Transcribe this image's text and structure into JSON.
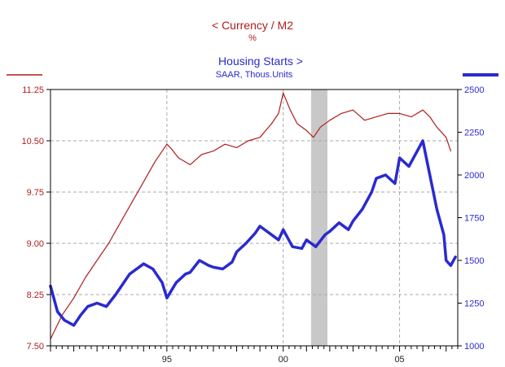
{
  "chart_data": {
    "type": "line",
    "left_title": "<  Currency / M2",
    "left_unit": "%",
    "right_title": "Housing Starts  >",
    "right_unit": "SAAR, Thous.Units",
    "x_ticks": [
      {
        "label": "95",
        "year": 1995
      },
      {
        "label": "00",
        "year": 2000
      },
      {
        "label": "05",
        "year": 2005
      }
    ],
    "x_range": [
      1990.0,
      2007.5
    ],
    "left_axis": {
      "ylim": [
        7.5,
        11.25
      ],
      "ticks": [
        "7.50",
        "8.25",
        "9.00",
        "9.75",
        "10.50",
        "11.25"
      ],
      "color": "#b01c1c"
    },
    "right_axis": {
      "ylim": [
        1000,
        2500
      ],
      "ticks": [
        "1000",
        "1250",
        "1500",
        "1750",
        "2000",
        "2250",
        "2500"
      ],
      "color": "#2a2ad0"
    },
    "recession": [
      2001.2,
      2001.9
    ],
    "grid": true,
    "series": [
      {
        "name": "Currency / M2",
        "axis": "left",
        "color": "#b01c1c",
        "x": [
          1990.0,
          1990.5,
          1991.0,
          1991.5,
          1992.0,
          1992.5,
          1993.0,
          1993.5,
          1994.0,
          1994.5,
          1995.0,
          1995.2,
          1995.5,
          1996.0,
          1996.5,
          1997.0,
          1997.5,
          1998.0,
          1998.5,
          1999.0,
          1999.5,
          1999.8,
          2000.0,
          2000.3,
          2000.6,
          2001.0,
          2001.3,
          2001.6,
          2002.0,
          2002.5,
          2003.0,
          2003.5,
          2004.0,
          2004.5,
          2005.0,
          2005.5,
          2006.0,
          2006.3,
          2006.6,
          2007.0,
          2007.2
        ],
        "values": [
          7.6,
          7.95,
          8.2,
          8.5,
          8.75,
          9.0,
          9.3,
          9.6,
          9.9,
          10.2,
          10.45,
          10.38,
          10.25,
          10.15,
          10.3,
          10.35,
          10.45,
          10.4,
          10.5,
          10.55,
          10.75,
          10.9,
          11.2,
          10.95,
          10.75,
          10.65,
          10.55,
          10.7,
          10.8,
          10.9,
          10.95,
          10.8,
          10.85,
          10.9,
          10.9,
          10.85,
          10.95,
          10.85,
          10.7,
          10.55,
          10.35
        ]
      },
      {
        "name": "Housing Starts",
        "axis": "right",
        "color": "#2a2ad0",
        "x": [
          1990.0,
          1990.3,
          1990.6,
          1991.0,
          1991.3,
          1991.6,
          1992.0,
          1992.4,
          1992.8,
          1993.0,
          1993.4,
          1993.8,
          1994.0,
          1994.4,
          1994.8,
          1995.0,
          1995.4,
          1995.8,
          1996.0,
          1996.4,
          1996.8,
          1997.0,
          1997.4,
          1997.8,
          1998.0,
          1998.4,
          1998.8,
          1999.0,
          1999.4,
          1999.8,
          2000.0,
          2000.4,
          2000.8,
          2001.0,
          2001.4,
          2001.8,
          2002.0,
          2002.4,
          2002.8,
          2003.0,
          2003.4,
          2003.8,
          2004.0,
          2004.4,
          2004.8,
          2005.0,
          2005.4,
          2005.8,
          2006.0,
          2006.3,
          2006.6,
          2006.9,
          2007.0,
          2007.2,
          2007.4
        ],
        "values": [
          1350,
          1200,
          1150,
          1120,
          1180,
          1230,
          1250,
          1230,
          1300,
          1340,
          1420,
          1460,
          1480,
          1450,
          1370,
          1280,
          1370,
          1420,
          1430,
          1500,
          1470,
          1460,
          1450,
          1490,
          1550,
          1600,
          1660,
          1700,
          1660,
          1620,
          1680,
          1580,
          1570,
          1620,
          1580,
          1650,
          1670,
          1720,
          1680,
          1730,
          1800,
          1900,
          1980,
          2000,
          1950,
          2100,
          2050,
          2150,
          2200,
          2000,
          1800,
          1650,
          1500,
          1470,
          1520
        ]
      }
    ]
  }
}
